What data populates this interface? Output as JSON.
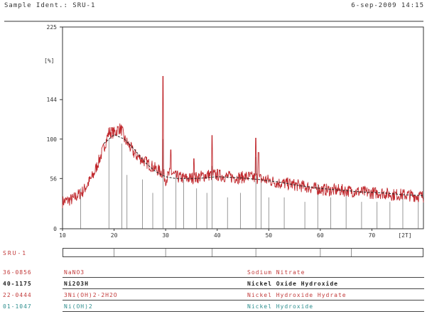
{
  "header": {
    "sample_ident": "Sample Ident.: SRU-1",
    "date_time": "6-sep-2009 14:15"
  },
  "sample_strip": {
    "label": "SRU-1"
  },
  "reference_patterns": [
    {
      "card": "36-0856",
      "formula": "NaNO3",
      "name": "Sodium Nitrate",
      "color": "#c23a3a",
      "bold": false
    },
    {
      "card": "40-1175",
      "formula": "Ni2O3H",
      "name": "Nickel Oxide Hydroxide",
      "color": "#222222",
      "bold": true
    },
    {
      "card": "22-0444",
      "formula": "3Ni(OH)2·2H2O",
      "name": "Nickel Hydroxide Hydrate",
      "color": "#c23a3a",
      "bold": false
    },
    {
      "card": "01-1047",
      "formula": "Ni(OH)2",
      "name": "Nickel Hydroxide",
      "color": "#2f8f8f",
      "bold": false
    }
  ],
  "chart_data": {
    "type": "line",
    "title": "",
    "xlabel": "[2T]",
    "ylabel": "[%]",
    "xlim": [
      10,
      80
    ],
    "ylim": [
      0,
      225
    ],
    "x_ticks": [
      10,
      20,
      30,
      40,
      50,
      60,
      70
    ],
    "x_tick_labels": [
      "10",
      "20",
      "30",
      "40",
      "50",
      "60",
      "70"
    ],
    "y_ticks": [
      0,
      56,
      100,
      144,
      225
    ],
    "y_tick_labels": [
      "0",
      "56",
      "100",
      "144",
      "225"
    ],
    "grid": false,
    "series": [
      {
        "color": "#c0282d",
        "x": [
          10,
          12,
          14,
          16,
          18,
          19,
          20,
          21,
          21.5,
          22,
          23,
          24,
          26,
          28,
          29.5,
          30,
          31,
          32,
          34,
          36,
          38,
          40,
          42,
          44,
          46,
          48,
          50,
          52,
          54,
          56,
          58,
          60,
          62,
          64,
          66,
          68,
          70,
          72,
          74,
          76,
          78,
          80
        ],
        "y": [
          30,
          33,
          42,
          60,
          90,
          108,
          107,
          112,
          110,
          100,
          92,
          83,
          75,
          67,
          62,
          55,
          63,
          58,
          56,
          57,
          60,
          60,
          58,
          57,
          58,
          56,
          54,
          51,
          50,
          48,
          46,
          44,
          43,
          43,
          42,
          41,
          40,
          40,
          38,
          38,
          37,
          36
        ]
      },
      {
        "color": "#222222",
        "x": [
          18,
          20,
          22,
          24,
          26,
          28,
          30,
          32,
          36,
          40,
          44,
          48,
          52,
          56,
          60,
          64,
          68,
          72,
          76,
          80
        ],
        "y": [
          95,
          105,
          100,
          88,
          74,
          64,
          58,
          56,
          56,
          58,
          57,
          55,
          52,
          48,
          45,
          43,
          41,
          40,
          38,
          37
        ]
      }
    ],
    "sharp_peaks": [
      {
        "x": 29.5,
        "y": 170
      },
      {
        "x": 31,
        "y": 88
      },
      {
        "x": 35.5,
        "y": 78
      },
      {
        "x": 39,
        "y": 104
      },
      {
        "x": 47.5,
        "y": 101
      },
      {
        "x": 48,
        "y": 85
      }
    ],
    "reference_sticks": [
      {
        "x": 13.5,
        "h": 45
      },
      {
        "x": 19,
        "h": 100
      },
      {
        "x": 21.5,
        "h": 95
      },
      {
        "x": 22.5,
        "h": 60
      },
      {
        "x": 25.5,
        "h": 55
      },
      {
        "x": 27.5,
        "h": 40
      },
      {
        "x": 29.5,
        "h": 100
      },
      {
        "x": 32,
        "h": 65
      },
      {
        "x": 33.5,
        "h": 55
      },
      {
        "x": 36,
        "h": 45
      },
      {
        "x": 38,
        "h": 40
      },
      {
        "x": 39,
        "h": 70
      },
      {
        "x": 42,
        "h": 35
      },
      {
        "x": 44.5,
        "h": 40
      },
      {
        "x": 47.5,
        "h": 80
      },
      {
        "x": 48.5,
        "h": 60
      },
      {
        "x": 50,
        "h": 35
      },
      {
        "x": 53,
        "h": 35
      },
      {
        "x": 57,
        "h": 30
      },
      {
        "x": 59.5,
        "h": 50
      },
      {
        "x": 62,
        "h": 35
      },
      {
        "x": 65,
        "h": 40
      },
      {
        "x": 68,
        "h": 30
      },
      {
        "x": 71,
        "h": 30
      },
      {
        "x": 73.5,
        "h": 30
      },
      {
        "x": 76,
        "h": 40
      },
      {
        "x": 79,
        "h": 30
      }
    ]
  }
}
